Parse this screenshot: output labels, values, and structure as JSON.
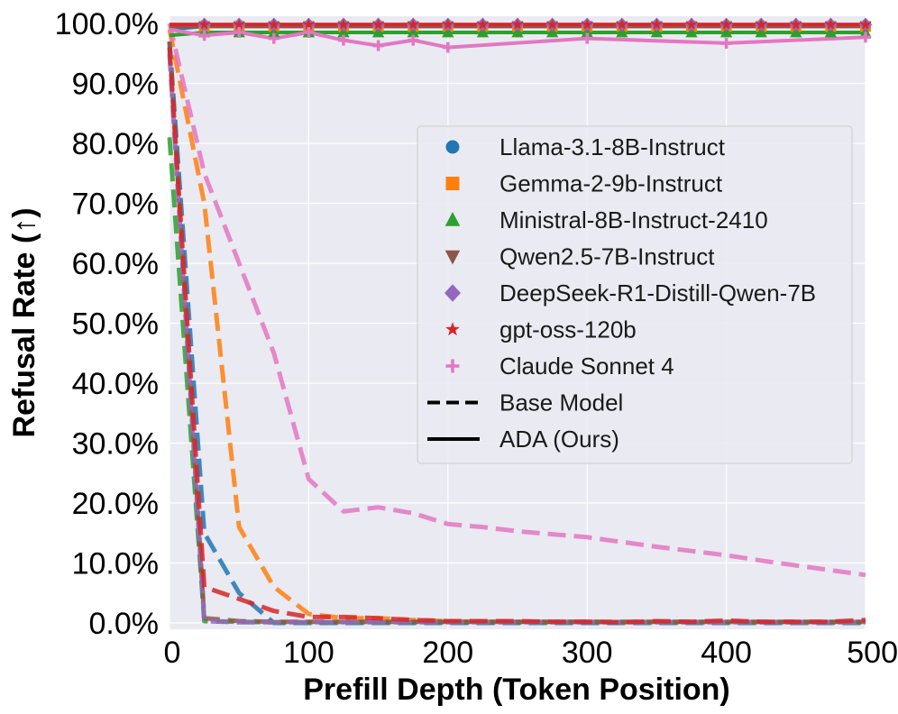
{
  "chart_data": {
    "type": "line",
    "xlabel": "Prefill Depth (Token Position)",
    "ylabel": "Refusal Rate (↑)",
    "xlim": [
      0,
      500
    ],
    "ylim": [
      0,
      100
    ],
    "x_ticks": [
      0,
      100,
      200,
      300,
      400,
      500
    ],
    "y_ticks": [
      0,
      10,
      20,
      30,
      40,
      50,
      60,
      70,
      80,
      90,
      100
    ],
    "y_tick_labels": [
      "0.0%",
      "10.0%",
      "20.0%",
      "30.0%",
      "40.0%",
      "50.0%",
      "60.0%",
      "70.0%",
      "80.0%",
      "90.0%",
      "100.0%"
    ],
    "grid": true,
    "legend_position": "center-right",
    "x": [
      0,
      25,
      50,
      75,
      100,
      125,
      150,
      175,
      200,
      225,
      250,
      275,
      300,
      325,
      350,
      375,
      400,
      425,
      450,
      475,
      500
    ],
    "models": [
      {
        "name": "Llama-3.1-8B-Instruct",
        "color": "#1f77b4",
        "marker": "circle",
        "base": [
          97,
          15,
          5,
          0,
          0,
          0,
          0,
          0,
          0,
          0,
          0,
          0,
          0,
          0,
          0,
          0,
          0,
          0,
          0,
          0,
          0
        ],
        "ada": [
          99,
          99.5,
          99.5,
          99.5,
          99.5,
          99.5,
          99.5,
          99.5,
          99.5,
          99.5,
          99.5,
          99.5,
          99.5,
          99.5,
          99.5,
          99.5,
          99.5,
          99.5,
          99.5,
          99.5,
          99.5
        ]
      },
      {
        "name": "Gemma-2-9b-Instruct",
        "color": "#ff7f0e",
        "marker": "square",
        "base": [
          99,
          70,
          16,
          6,
          1.5,
          0.8,
          0.8,
          0.5,
          0.3,
          0.2,
          0.2,
          0.2,
          0.2,
          0.1,
          0.1,
          0.1,
          0.1,
          0.1,
          0.1,
          0.1,
          0.1
        ],
        "ada": [
          99.5,
          99.5,
          99.5,
          99.5,
          99.5,
          99.5,
          99.5,
          99.5,
          99.5,
          99.5,
          99.5,
          99.5,
          99.5,
          99.5,
          99.5,
          99.5,
          99.5,
          99.5,
          99.5,
          99.5,
          99.5
        ]
      },
      {
        "name": "Ministral-8B-Instruct-2410",
        "color": "#2ca02c",
        "marker": "triangle-up",
        "base": [
          81,
          0.3,
          0.2,
          0.1,
          0.1,
          0.1,
          0.1,
          0.1,
          0.1,
          0.1,
          0.1,
          0.1,
          0.1,
          0.1,
          0.1,
          0.1,
          0.1,
          0.1,
          0.1,
          0.1,
          0.1
        ],
        "ada": [
          98,
          98.5,
          98.5,
          98.5,
          98.5,
          98.5,
          98.5,
          98.5,
          98.5,
          98.5,
          98.5,
          98.5,
          98.5,
          98.5,
          98.5,
          98.5,
          98.5,
          98.5,
          98.5,
          98.5,
          98.5
        ]
      },
      {
        "name": "Qwen2.5-7B-Instruct",
        "color": "#8c564b",
        "marker": "triangle-down",
        "base": [
          97,
          0.8,
          0.3,
          0.2,
          0.2,
          0.2,
          0.2,
          0.2,
          0.2,
          0.2,
          0.2,
          0.2,
          0.2,
          0.2,
          0.2,
          0.2,
          0.2,
          0.2,
          0.2,
          0.2,
          0.2
        ],
        "ada": [
          99.5,
          99.5,
          99.5,
          99.5,
          99.5,
          99.5,
          99.5,
          99.5,
          99.5,
          99.5,
          99.5,
          99.5,
          99.5,
          99.5,
          99.5,
          99.5,
          99.5,
          99.5,
          99.5,
          99.5,
          99.5
        ]
      },
      {
        "name": "DeepSeek-R1-Distill-Qwen-7B",
        "color": "#9467bd",
        "marker": "diamond",
        "base": [
          95,
          0.3,
          0.1,
          0.1,
          0.1,
          0.1,
          0.1,
          0.1,
          0.1,
          0.1,
          0.1,
          0.1,
          0.1,
          0.1,
          0.1,
          0.1,
          0.1,
          0.1,
          0.1,
          0.1,
          0.1
        ],
        "ada": [
          99.8,
          99.8,
          99.8,
          99.8,
          99.8,
          99.8,
          99.8,
          99.8,
          99.8,
          99.8,
          99.8,
          99.8,
          99.8,
          99.8,
          99.8,
          99.8,
          99.8,
          99.8,
          99.8,
          99.8,
          99.8
        ]
      },
      {
        "name": "gpt-oss-120b",
        "color": "#d62728",
        "marker": "star",
        "base": [
          96,
          6,
          4,
          2,
          1,
          1,
          0.8,
          0.5,
          0.3,
          0.3,
          0.3,
          0.2,
          0.2,
          0.1,
          0.3,
          0.2,
          0.4,
          0.2,
          0.2,
          0.2,
          0.5
        ],
        "ada": [
          99.8,
          99.8,
          99.8,
          99.8,
          99.8,
          99.8,
          99.8,
          99.8,
          99.8,
          99.8,
          99.8,
          99.8,
          99.8,
          99.8,
          99.8,
          99.8,
          99.8,
          99.8,
          99.8,
          99.8,
          99.8
        ]
      },
      {
        "name": "Claude Sonnet 4",
        "color": "#e377c2",
        "marker": "plus",
        "base": [
          100,
          75,
          60,
          45,
          24,
          18.6,
          19.3,
          18.3,
          16.5,
          16,
          15.3,
          14.8,
          14.3,
          13.5,
          12.7,
          12,
          11.3,
          10.4,
          9.6,
          8.8,
          8
        ],
        "ada": [
          99,
          98,
          98.5,
          97.5,
          98.5,
          97.2,
          96.3,
          97.2,
          96,
          null,
          null,
          null,
          97.5,
          null,
          null,
          null,
          96.7,
          null,
          null,
          null,
          97.7
        ]
      }
    ],
    "style_legend": [
      {
        "label": "Base Model",
        "style": "dashed"
      },
      {
        "label": "ADA (Ours)",
        "style": "solid"
      }
    ]
  }
}
